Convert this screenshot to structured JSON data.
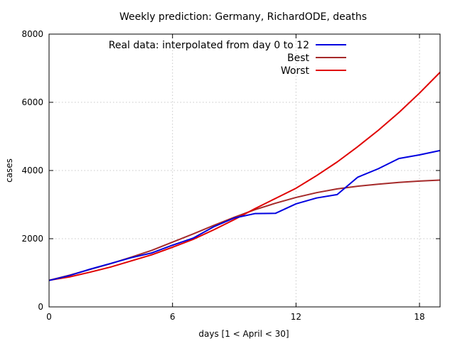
{
  "chart_data": {
    "type": "line",
    "title": "Weekly prediction: Germany, RichardODE, deaths",
    "xlabel": "days [1 < April < 30]",
    "ylabel": "cases",
    "xlim": [
      0,
      19
    ],
    "ylim": [
      0,
      8000
    ],
    "xticks": [
      0,
      6,
      12,
      18
    ],
    "yticks": [
      0,
      2000,
      4000,
      6000,
      8000
    ],
    "grid": true,
    "legend_position": "top-right",
    "series": [
      {
        "name": "Real data: interpolated from day 0 to 12",
        "color": "#0000e0",
        "x": [
          0,
          1,
          2,
          3,
          4,
          5,
          6,
          7,
          8,
          9,
          10,
          11,
          12,
          13,
          14,
          15,
          16,
          17,
          18,
          19
        ],
        "y": [
          775,
          920,
          1107,
          1275,
          1444,
          1584,
          1810,
          2016,
          2349,
          2607,
          2736,
          2744,
          3022,
          3194,
          3294,
          3804,
          4052,
          4352,
          4459,
          4586
        ]
      },
      {
        "name": "Best",
        "color": "#a52a2a",
        "x": [
          0,
          1,
          2,
          3,
          4,
          5,
          6,
          7,
          8,
          9,
          10,
          11,
          12,
          13,
          14,
          15,
          16,
          17,
          18,
          19
        ],
        "y": [
          780,
          930,
          1100,
          1270,
          1460,
          1660,
          1900,
          2140,
          2390,
          2630,
          2850,
          3040,
          3210,
          3350,
          3460,
          3540,
          3600,
          3650,
          3690,
          3720
        ]
      },
      {
        "name": "Worst",
        "color": "#e00000",
        "x": [
          0,
          1,
          2,
          3,
          4,
          5,
          6,
          7,
          8,
          9,
          10,
          11,
          12,
          13,
          14,
          15,
          16,
          17,
          18,
          19
        ],
        "y": [
          780,
          880,
          1020,
          1170,
          1350,
          1530,
          1750,
          1980,
          2260,
          2560,
          2880,
          3180,
          3480,
          3850,
          4250,
          4700,
          5180,
          5700,
          6270,
          6880
        ]
      }
    ]
  }
}
